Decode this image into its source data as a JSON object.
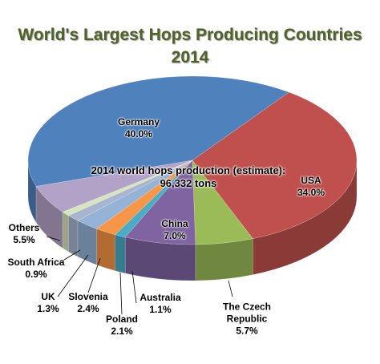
{
  "chart_data": {
    "type": "pie",
    "title": "World's Largest Hops Producing Countries 2014",
    "annotation": "2014 world hops production (estimate): 96,332 tons",
    "categories": [
      "Germany",
      "USA",
      "The Czech Republic",
      "China",
      "Australia",
      "Poland",
      "Slovenia",
      "UK",
      "South Africa",
      "Others"
    ],
    "values": [
      40.0,
      34.0,
      5.7,
      7.0,
      1.1,
      2.1,
      2.4,
      1.3,
      0.9,
      5.5
    ],
    "value_labels": [
      "40.0%",
      "34.0%",
      "5.7%",
      "7.0%",
      "1.1%",
      "2.1%",
      "2.4%",
      "1.3%",
      "0.9%",
      "5.5%"
    ],
    "colors": [
      "#4f81bd",
      "#c0504d",
      "#9bbb59",
      "#8064a2",
      "#4bacc6",
      "#f79646",
      "#95b3d7",
      "#a9b4d0",
      "#d7e4bd",
      "#b3a2c7"
    ]
  }
}
